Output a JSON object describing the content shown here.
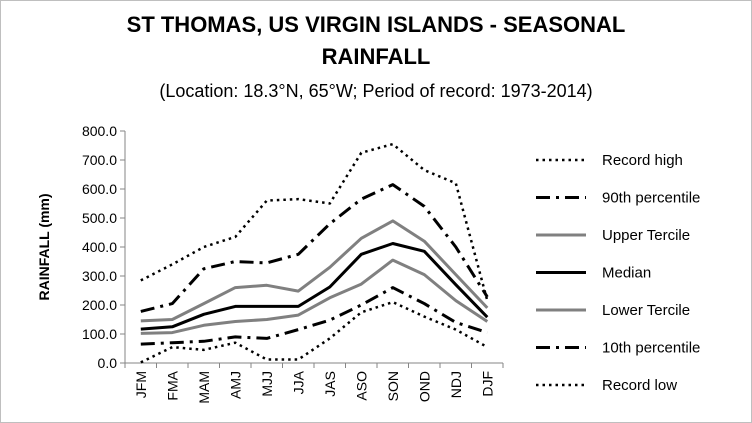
{
  "chart_data": {
    "type": "line",
    "title_line1": "ST THOMAS, US VIRGIN ISLANDS - SEASONAL",
    "title_line2": "RAINFALL",
    "subtitle": "(Location: 18.3°N, 65°W; Period of record: 1973-2014)",
    "ylabel": "RAINFALL (mm)",
    "xlabel": "",
    "ylim": [
      0,
      800
    ],
    "yticks": [
      "0.0",
      "100.0",
      "200.0",
      "300.0",
      "400.0",
      "500.0",
      "600.0",
      "700.0",
      "800.0"
    ],
    "categories": [
      "JFM",
      "FMA",
      "MAM",
      "AMJ",
      "MJJ",
      "JJA",
      "JAS",
      "ASO",
      "SON",
      "OND",
      "NDJ",
      "DJF"
    ],
    "grid": false,
    "legend_position": "right",
    "series": [
      {
        "name": "Record high",
        "style": "dotted",
        "color": "#000000",
        "values": [
          285,
          340,
          400,
          435,
          560,
          565,
          550,
          725,
          755,
          665,
          620,
          215
        ]
      },
      {
        "name": "90th percentile",
        "style": "dashdot",
        "color": "#000000",
        "values": [
          178,
          205,
          325,
          350,
          345,
          375,
          480,
          565,
          615,
          540,
          400,
          228
        ]
      },
      {
        "name": "Upper Tercile",
        "style": "solid",
        "color": "#808080",
        "values": [
          145,
          150,
          205,
          260,
          268,
          248,
          330,
          430,
          490,
          420,
          305,
          190
        ]
      },
      {
        "name": "Median",
        "style": "solid",
        "color": "#000000",
        "values": [
          117,
          125,
          168,
          195,
          195,
          195,
          262,
          375,
          412,
          385,
          270,
          158
        ]
      },
      {
        "name": "Lower Tercile",
        "style": "solid",
        "color": "#808080",
        "values": [
          102,
          105,
          130,
          143,
          150,
          165,
          225,
          272,
          355,
          305,
          215,
          143
        ]
      },
      {
        "name": "10th percentile",
        "style": "dashdot",
        "color": "#000000",
        "values": [
          65,
          70,
          75,
          90,
          85,
          115,
          148,
          200,
          260,
          205,
          140,
          105
        ]
      },
      {
        "name": "Record low",
        "style": "dotted",
        "color": "#000000",
        "values": [
          2,
          55,
          45,
          70,
          12,
          12,
          85,
          175,
          210,
          160,
          115,
          55
        ]
      }
    ]
  }
}
